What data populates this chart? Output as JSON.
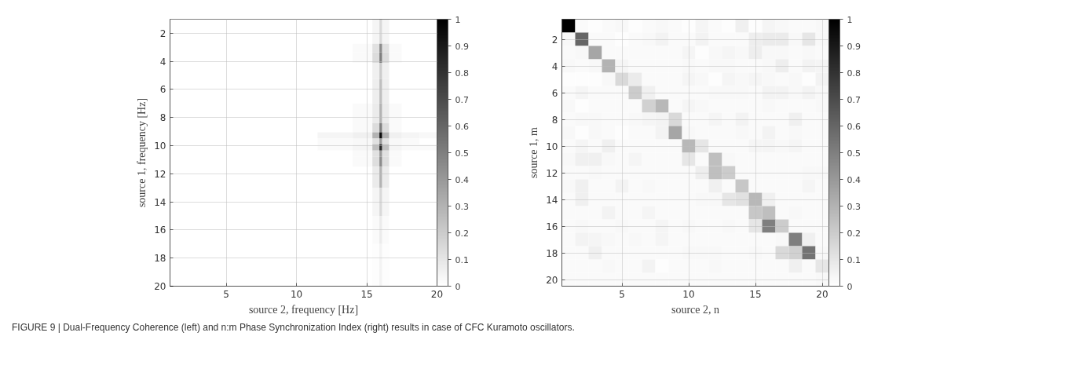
{
  "chart_data": [
    {
      "type": "heatmap",
      "xlabel": "source 2, frequency [Hz]",
      "ylabel": "source 1, frequency [Hz]",
      "x": [
        2,
        5,
        10,
        13,
        15,
        15.8,
        16,
        16.2,
        17,
        18,
        19.5
      ],
      "y": [
        1.5,
        2.5,
        3,
        3.7,
        4.5,
        6,
        8,
        8.8,
        9.3,
        9.7,
        10.1,
        10.6,
        11,
        12,
        14,
        16,
        18,
        19.5
      ],
      "cells": [
        [
          0,
          0,
          0,
          0,
          0,
          0.04,
          0.15,
          0.04,
          0,
          0,
          0
        ],
        [
          0,
          0,
          0,
          0,
          0,
          0.04,
          0.15,
          0.04,
          0,
          0,
          0
        ],
        [
          0,
          0,
          0,
          0,
          0.02,
          0.12,
          0.45,
          0.12,
          0.02,
          0,
          0
        ],
        [
          0,
          0,
          0,
          0,
          0.02,
          0.14,
          0.5,
          0.14,
          0.02,
          0,
          0
        ],
        [
          0,
          0,
          0,
          0,
          0,
          0.06,
          0.2,
          0.06,
          0,
          0,
          0
        ],
        [
          0,
          0,
          0,
          0,
          0,
          0.07,
          0.25,
          0.07,
          0,
          0,
          0
        ],
        [
          0,
          0,
          0,
          0,
          0.02,
          0.08,
          0.3,
          0.08,
          0.02,
          0,
          0
        ],
        [
          0,
          0,
          0,
          0,
          0.02,
          0.14,
          0.5,
          0.14,
          0.02,
          0,
          0
        ],
        [
          0,
          0,
          0,
          0.04,
          0.06,
          0.3,
          0.95,
          0.3,
          0.06,
          0.04,
          0.03
        ],
        [
          0,
          0,
          0,
          0.02,
          0.03,
          0.12,
          0.4,
          0.12,
          0.03,
          0.02,
          0
        ],
        [
          0,
          0,
          0,
          0.02,
          0.04,
          0.25,
          0.85,
          0.25,
          0.04,
          0.02,
          0.02
        ],
        [
          0,
          0,
          0,
          0,
          0.02,
          0.12,
          0.4,
          0.12,
          0.02,
          0,
          0
        ],
        [
          0,
          0,
          0,
          0,
          0.02,
          0.13,
          0.45,
          0.13,
          0.02,
          0,
          0
        ],
        [
          0,
          0,
          0,
          0,
          0,
          0.08,
          0.3,
          0.08,
          0,
          0,
          0
        ],
        [
          0,
          0,
          0,
          0,
          0,
          0.04,
          0.15,
          0.04,
          0,
          0,
          0
        ],
        [
          0,
          0,
          0,
          0,
          0,
          0.02,
          0.08,
          0.02,
          0,
          0,
          0
        ],
        [
          0,
          0,
          0,
          0,
          0,
          0.01,
          0.05,
          0.01,
          0,
          0,
          0
        ],
        [
          0,
          0,
          0,
          0,
          0,
          0.01,
          0.05,
          0.01,
          0,
          0,
          0
        ]
      ],
      "xlim": [
        1,
        20
      ],
      "ylim": [
        20,
        1
      ],
      "xticks": [
        5,
        10,
        15,
        20
      ],
      "yticks": [
        2,
        4,
        6,
        8,
        10,
        12,
        14,
        16,
        18,
        20
      ],
      "clim": [
        0,
        1
      ],
      "cticks": [
        0,
        0.1,
        0.2,
        0.3,
        0.4,
        0.5,
        0.6,
        0.7,
        0.8,
        0.9,
        1
      ],
      "grid": true,
      "annotations": [
        "FIGURE 9 | Dual-Frequency Coherence (left) and n:m Phase Synchronization Index (right) results in case of CFC Kuramoto oscillators."
      ]
    },
    {
      "type": "heatmap",
      "xlabel": "source 2, n",
      "ylabel": "source 1, m",
      "x": [
        1,
        2,
        3,
        4,
        5,
        6,
        7,
        8,
        9,
        10,
        11,
        12,
        13,
        14,
        15,
        16,
        17,
        18,
        19,
        20
      ],
      "y": [
        1,
        2,
        3,
        4,
        5,
        6,
        7,
        8,
        9,
        10,
        11,
        12,
        13,
        14,
        15,
        16,
        17,
        18,
        19,
        20
      ],
      "cells": [
        [
          1,
          0.02,
          0.01,
          0.02,
          0.03,
          0.01,
          0.02,
          0.03,
          0.02,
          0.01,
          0.04,
          0.02,
          0.01,
          0.06,
          0.01,
          0.04,
          0.03,
          0.02,
          0.02,
          0.03
        ],
        [
          0.03,
          0.6,
          0.02,
          0.02,
          0.01,
          0.02,
          0.03,
          0.05,
          0.02,
          0.02,
          0.05,
          0.02,
          0.02,
          0.02,
          0.07,
          0.08,
          0.08,
          0.03,
          0.1,
          0.03
        ],
        [
          0.02,
          0.03,
          0.35,
          0.02,
          0.02,
          0.02,
          0.02,
          0.02,
          0.02,
          0.04,
          0.01,
          0.03,
          0.04,
          0.03,
          0.07,
          0.03,
          0.03,
          0.02,
          0.03,
          0.02
        ],
        [
          0.03,
          0.02,
          0.03,
          0.3,
          0.04,
          0.02,
          0.02,
          0.02,
          0.02,
          0.03,
          0.02,
          0.03,
          0.03,
          0.02,
          0.02,
          0.03,
          0.07,
          0.02,
          0.05,
          0.04
        ],
        [
          0.01,
          0.01,
          0.01,
          0.03,
          0.15,
          0.08,
          0.02,
          0.02,
          0.02,
          0.04,
          0.03,
          0.01,
          0.04,
          0.03,
          0.04,
          0.03,
          0.02,
          0.03,
          0.01,
          0.05
        ],
        [
          0.02,
          0.04,
          0.02,
          0.02,
          0.02,
          0.2,
          0.06,
          0.02,
          0.02,
          0.02,
          0.02,
          0.03,
          0.03,
          0.03,
          0.02,
          0.05,
          0.05,
          0.03,
          0.05,
          0.03
        ],
        [
          0.03,
          0.01,
          0.02,
          0.02,
          0.02,
          0.02,
          0.18,
          0.28,
          0.02,
          0.04,
          0.03,
          0.02,
          0.02,
          0.02,
          0.02,
          0.03,
          0.02,
          0.02,
          0.02,
          0.03
        ],
        [
          0.02,
          0.03,
          0.03,
          0.02,
          0.02,
          0.03,
          0.04,
          0.05,
          0.15,
          0.02,
          0.02,
          0.04,
          0.02,
          0.05,
          0.02,
          0.02,
          0.02,
          0.06,
          0.02,
          0.02
        ],
        [
          0.03,
          0.01,
          0.03,
          0.02,
          0.01,
          0.02,
          0.02,
          0.05,
          0.35,
          0.03,
          0.02,
          0.02,
          0.02,
          0.03,
          0.02,
          0.05,
          0.02,
          0.03,
          0.02,
          0.02
        ],
        [
          0.02,
          0.04,
          0.02,
          0.06,
          0.02,
          0.02,
          0.02,
          0.02,
          0.02,
          0.28,
          0.1,
          0.02,
          0.02,
          0.02,
          0.04,
          0.04,
          0.03,
          0.04,
          0.02,
          0.02
        ],
        [
          0.03,
          0.06,
          0.06,
          0.03,
          0.02,
          0.04,
          0.02,
          0.02,
          0.02,
          0.1,
          0.02,
          0.25,
          0.03,
          0.02,
          0.02,
          0.02,
          0.02,
          0.02,
          0.02,
          0.02
        ],
        [
          0.02,
          0.02,
          0.03,
          0.02,
          0.02,
          0.02,
          0.02,
          0.02,
          0.02,
          0.02,
          0.07,
          0.25,
          0.2,
          0.02,
          0.02,
          0.02,
          0.02,
          0.02,
          0.03,
          0.03
        ],
        [
          0.03,
          0.06,
          0.02,
          0.02,
          0.05,
          0.02,
          0.03,
          0.02,
          0.02,
          0.02,
          0.02,
          0.06,
          0.02,
          0.22,
          0.02,
          0.02,
          0.02,
          0.02,
          0.04,
          0.02
        ],
        [
          0.02,
          0.06,
          0.02,
          0.02,
          0.02,
          0.02,
          0.02,
          0.02,
          0.02,
          0.02,
          0.03,
          0.03,
          0.1,
          0.12,
          0.28,
          0.06,
          0.02,
          0.02,
          0.02,
          0.02
        ],
        [
          0.02,
          0.02,
          0.02,
          0.05,
          0.02,
          0.02,
          0.04,
          0.02,
          0.02,
          0.02,
          0.02,
          0.02,
          0.02,
          0.02,
          0.22,
          0.25,
          0.02,
          0.03,
          0.02,
          0.02
        ],
        [
          0.02,
          0.03,
          0.02,
          0.02,
          0.03,
          0.02,
          0.02,
          0.04,
          0.02,
          0.03,
          0.02,
          0.02,
          0.03,
          0.02,
          0.1,
          0.5,
          0.2,
          0.02,
          0.02,
          0.02
        ],
        [
          0.02,
          0.05,
          0.04,
          0.03,
          0.02,
          0.03,
          0.02,
          0.04,
          0.02,
          0.02,
          0.02,
          0.02,
          0.02,
          0.02,
          0.02,
          0.02,
          0.03,
          0.5,
          0.06,
          0.02
        ],
        [
          0.02,
          0.02,
          0.06,
          0.02,
          0.02,
          0.02,
          0.02,
          0.02,
          0.02,
          0.03,
          0.03,
          0.03,
          0.02,
          0.02,
          0.03,
          0.02,
          0.15,
          0.18,
          0.55,
          0.03
        ],
        [
          0.02,
          0.02,
          0.02,
          0.03,
          0.02,
          0.02,
          0.05,
          0.01,
          0.02,
          0.02,
          0.02,
          0.03,
          0.02,
          0.02,
          0.02,
          0.02,
          0.02,
          0.06,
          0.02,
          0.1
        ],
        [
          0.02,
          0.02,
          0.02,
          0.02,
          0.02,
          0.02,
          0.02,
          0.02,
          0.02,
          0.02,
          0.02,
          0.02,
          0.02,
          0.02,
          0.02,
          0.02,
          0.02,
          0.02,
          0.02,
          0.03
        ]
      ],
      "xlim": [
        0.5,
        20.5
      ],
      "ylim": [
        20.5,
        0.5
      ],
      "xticks": [
        5,
        10,
        15,
        20
      ],
      "yticks": [
        2,
        4,
        6,
        8,
        10,
        12,
        14,
        16,
        18,
        20
      ],
      "clim": [
        0,
        1
      ],
      "cticks": [
        0,
        0.1,
        0.2,
        0.3,
        0.4,
        0.5,
        0.6,
        0.7,
        0.8,
        0.9,
        1
      ],
      "grid": true
    }
  ]
}
